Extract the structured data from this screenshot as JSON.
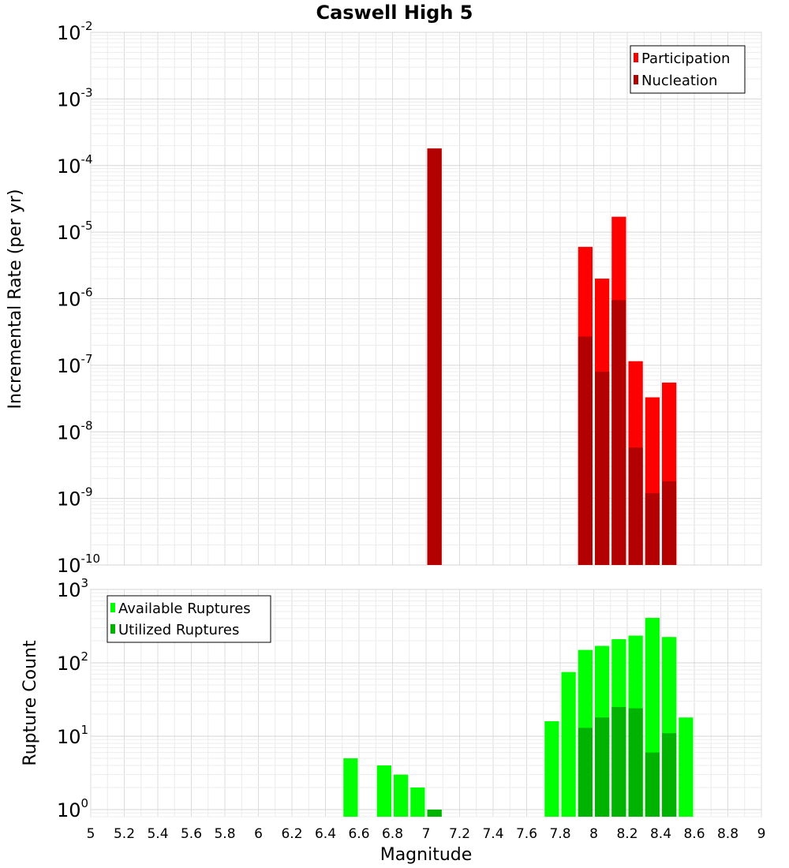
{
  "title": "Caswell High 5",
  "chart_data": [
    {
      "type": "bar",
      "scale": "log",
      "ylabel": "Incremental Rate (per yr)",
      "xlim": [
        5,
        9
      ],
      "ylim": [
        1e-10,
        0.01
      ],
      "ytick_exponents": [
        -2,
        -3,
        -4,
        -5,
        -6,
        -7,
        -8,
        -9,
        -10
      ],
      "grid": true,
      "legend_position": "top-right",
      "series": [
        {
          "name": "Participation",
          "color": "#ff0000",
          "x": [
            7.05,
            7.95,
            8.05,
            8.15,
            8.25,
            8.35,
            8.45
          ],
          "values": [
            0.00018,
            6e-06,
            2e-06,
            1.7e-05,
            1.15e-07,
            3.3e-08,
            5.5e-08
          ]
        },
        {
          "name": "Nucleation",
          "color": "#b30000",
          "x": [
            7.05,
            7.95,
            8.05,
            8.15,
            8.25,
            8.35,
            8.45
          ],
          "values": [
            0.00018,
            2.7e-07,
            8e-08,
            9.5e-07,
            5.8e-09,
            1.2e-09,
            1.8e-09
          ]
        }
      ]
    },
    {
      "type": "bar",
      "scale": "log",
      "ylabel": "Rupture Count",
      "xlabel": "Magnitude",
      "xlim": [
        5,
        9
      ],
      "ylim": [
        0.8,
        1000
      ],
      "ytick_exponents": [
        3,
        2,
        1,
        0
      ],
      "xticks": [
        "5",
        "5.2",
        "5.4",
        "5.6",
        "5.8",
        "6",
        "6.2",
        "6.4",
        "6.6",
        "6.8",
        "7",
        "7.2",
        "7.4",
        "7.6",
        "7.8",
        "8",
        "8.2",
        "8.4",
        "8.6",
        "8.8",
        "9"
      ],
      "grid": true,
      "legend_position": "top-left",
      "series": [
        {
          "name": "Available Ruptures",
          "color": "#00ff00",
          "x": [
            6.55,
            6.75,
            6.85,
            6.95,
            7.05,
            7.75,
            7.85,
            7.95,
            8.05,
            8.15,
            8.25,
            8.35,
            8.45,
            8.55
          ],
          "values": [
            5,
            4,
            3,
            2,
            1,
            16,
            75,
            150,
            170,
            210,
            235,
            410,
            225,
            18
          ]
        },
        {
          "name": "Utilized Ruptures",
          "color": "#00b300",
          "x": [
            7.05,
            7.95,
            8.05,
            8.15,
            8.25,
            8.35,
            8.45
          ],
          "values": [
            1,
            13,
            18,
            25,
            24,
            6,
            11
          ]
        }
      ]
    }
  ]
}
